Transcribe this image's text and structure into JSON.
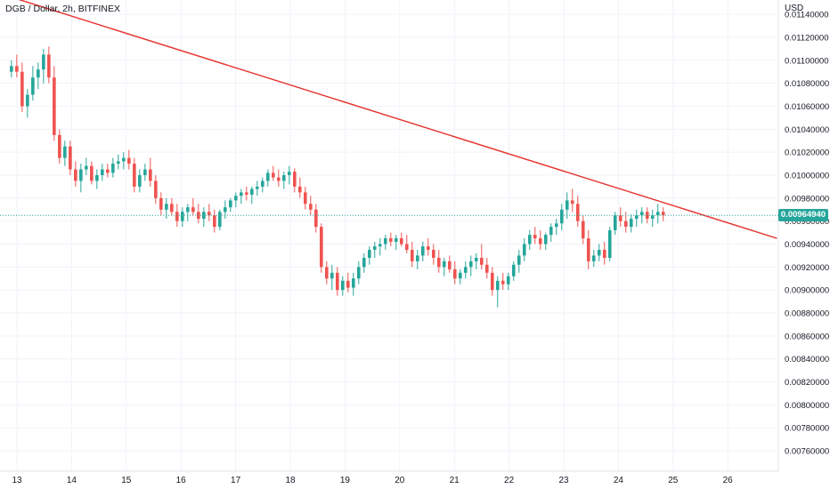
{
  "header": {
    "title": "DGB / Dollar, 2h, BITFINEX"
  },
  "axis": {
    "currency": "USD"
  },
  "colors": {
    "up": "#26a69a",
    "down": "#ef5350",
    "trend": "#e53935",
    "last": "#26a69a"
  },
  "chart_data": {
    "type": "candlestick",
    "title": "DGB / Dollar, 2h, BITFINEX",
    "ylabel": "USD",
    "ylim": [
      0.0075,
      0.0115
    ],
    "y_ticks": [
      "0.01140000",
      "0.01120000",
      "0.01100000",
      "0.01080000",
      "0.01060000",
      "0.01040000",
      "0.01020000",
      "0.01000000",
      "0.00980000",
      "0.00960000",
      "0.00940000",
      "0.00920000",
      "0.00900000",
      "0.00880000",
      "0.00860000",
      "0.00840000",
      "0.00820000",
      "0.00800000",
      "0.00780000",
      "0.00760000"
    ],
    "x_ticks": [
      "13",
      "14",
      "15",
      "16",
      "17",
      "18",
      "19",
      "20",
      "21",
      "22",
      "23",
      "24",
      "25",
      "26"
    ],
    "x_range": [
      12.9,
      26.9
    ],
    "last_price": "0.00964940",
    "grid": true,
    "trendline": {
      "x": [
        12.9,
        26.9
      ],
      "y": [
        0.01155,
        0.00945
      ]
    },
    "candles_ohlc": [
      [
        0.0109,
        0.011,
        0.01085,
        0.01095
      ],
      [
        0.01095,
        0.01105,
        0.01085,
        0.0109
      ],
      [
        0.0109,
        0.01098,
        0.01055,
        0.0106
      ],
      [
        0.0106,
        0.01075,
        0.0105,
        0.0107
      ],
      [
        0.0107,
        0.01095,
        0.01065,
        0.01085
      ],
      [
        0.01085,
        0.01098,
        0.01075,
        0.01092
      ],
      [
        0.01092,
        0.0111,
        0.0108,
        0.01105
      ],
      [
        0.01105,
        0.01112,
        0.0108,
        0.01085
      ],
      [
        0.01085,
        0.01095,
        0.0103,
        0.01035
      ],
      [
        0.01035,
        0.0104,
        0.0101,
        0.01015
      ],
      [
        0.01015,
        0.0103,
        0.01008,
        0.01025
      ],
      [
        0.01025,
        0.0103,
        0.01,
        0.01005
      ],
      [
        0.01005,
        0.01012,
        0.0099,
        0.00995
      ],
      [
        0.00995,
        0.0101,
        0.00985,
        0.01005
      ],
      [
        0.01005,
        0.01015,
        0.01,
        0.01008
      ],
      [
        0.01008,
        0.01012,
        0.00992,
        0.00995
      ],
      [
        0.00995,
        0.01005,
        0.00988,
        0.01
      ],
      [
        0.01,
        0.0101,
        0.00995,
        0.01005
      ],
      [
        0.01005,
        0.0101,
        0.00998,
        0.01002
      ],
      [
        0.01002,
        0.01015,
        0.00998,
        0.0101
      ],
      [
        0.0101,
        0.01018,
        0.01005,
        0.01012
      ],
      [
        0.01012,
        0.0102,
        0.01005,
        0.01015
      ],
      [
        0.01015,
        0.01022,
        0.01005,
        0.0101
      ],
      [
        0.0101,
        0.01015,
        0.00985,
        0.0099
      ],
      [
        0.0099,
        0.01005,
        0.00985,
        0.01
      ],
      [
        0.01,
        0.0101,
        0.00995,
        0.01005
      ],
      [
        0.01005,
        0.01015,
        0.0099,
        0.00995
      ],
      [
        0.00995,
        0.01,
        0.00975,
        0.0098
      ],
      [
        0.0098,
        0.00985,
        0.00965,
        0.0097
      ],
      [
        0.0097,
        0.0098,
        0.00962,
        0.00975
      ],
      [
        0.00975,
        0.0098,
        0.00965,
        0.00968
      ],
      [
        0.00968,
        0.00975,
        0.00955,
        0.0096
      ],
      [
        0.0096,
        0.00972,
        0.00955,
        0.00968
      ],
      [
        0.00968,
        0.00975,
        0.0096,
        0.00972
      ],
      [
        0.00972,
        0.0098,
        0.00965,
        0.00968
      ],
      [
        0.00968,
        0.00975,
        0.00958,
        0.00962
      ],
      [
        0.00962,
        0.00972,
        0.00955,
        0.00968
      ],
      [
        0.00968,
        0.00975,
        0.0096,
        0.00965
      ],
      [
        0.00965,
        0.0097,
        0.0095,
        0.00955
      ],
      [
        0.00955,
        0.0097,
        0.00952,
        0.00968
      ],
      [
        0.00968,
        0.00978,
        0.00962,
        0.00972
      ],
      [
        0.00972,
        0.0098,
        0.00968,
        0.00978
      ],
      [
        0.00978,
        0.00985,
        0.00972,
        0.00982
      ],
      [
        0.00982,
        0.00988,
        0.00975,
        0.00985
      ],
      [
        0.00985,
        0.0099,
        0.00978,
        0.00983
      ],
      [
        0.00983,
        0.0099,
        0.00975,
        0.00988
      ],
      [
        0.00988,
        0.00995,
        0.00982,
        0.0099
      ],
      [
        0.0099,
        0.00998,
        0.00985,
        0.00995
      ],
      [
        0.00995,
        0.01005,
        0.0099,
        0.01002
      ],
      [
        0.01002,
        0.01008,
        0.00995,
        0.00998
      ],
      [
        0.00998,
        0.01005,
        0.0099,
        0.00995
      ],
      [
        0.00995,
        0.01003,
        0.00988,
        0.01
      ],
      [
        0.01,
        0.01008,
        0.00992,
        0.01003
      ],
      [
        0.01003,
        0.01006,
        0.00985,
        0.0099
      ],
      [
        0.0099,
        0.00998,
        0.0098,
        0.00985
      ],
      [
        0.00985,
        0.0099,
        0.0097,
        0.00975
      ],
      [
        0.00975,
        0.00982,
        0.00965,
        0.0097
      ],
      [
        0.0097,
        0.00975,
        0.0095,
        0.00955
      ],
      [
        0.00955,
        0.00958,
        0.00915,
        0.0092
      ],
      [
        0.0092,
        0.00925,
        0.00905,
        0.0091
      ],
      [
        0.0091,
        0.00922,
        0.009,
        0.00915
      ],
      [
        0.00915,
        0.0092,
        0.00895,
        0.009
      ],
      [
        0.009,
        0.00912,
        0.00895,
        0.00908
      ],
      [
        0.00908,
        0.00915,
        0.00898,
        0.00902
      ],
      [
        0.00902,
        0.00915,
        0.00895,
        0.0091
      ],
      [
        0.0091,
        0.00925,
        0.00905,
        0.0092
      ],
      [
        0.0092,
        0.00932,
        0.00915,
        0.00928
      ],
      [
        0.00928,
        0.00938,
        0.00922,
        0.00935
      ],
      [
        0.00935,
        0.00942,
        0.00928,
        0.00938
      ],
      [
        0.00938,
        0.00945,
        0.0093,
        0.0094
      ],
      [
        0.0094,
        0.00948,
        0.00935,
        0.00945
      ],
      [
        0.00945,
        0.0095,
        0.00938,
        0.00942
      ],
      [
        0.00942,
        0.00948,
        0.00935,
        0.00945
      ],
      [
        0.00945,
        0.0095,
        0.00938,
        0.0094
      ],
      [
        0.0094,
        0.00948,
        0.00932,
        0.00935
      ],
      [
        0.00935,
        0.00942,
        0.0092,
        0.00925
      ],
      [
        0.00925,
        0.00935,
        0.00918,
        0.0093
      ],
      [
        0.0093,
        0.00942,
        0.00925,
        0.00938
      ],
      [
        0.00938,
        0.00945,
        0.0093,
        0.00935
      ],
      [
        0.00935,
        0.0094,
        0.00922,
        0.00928
      ],
      [
        0.00928,
        0.00935,
        0.00915,
        0.0092
      ],
      [
        0.0092,
        0.00928,
        0.00912,
        0.00925
      ],
      [
        0.00925,
        0.0093,
        0.00915,
        0.00918
      ],
      [
        0.00918,
        0.00925,
        0.00905,
        0.0091
      ],
      [
        0.0091,
        0.00918,
        0.00905,
        0.00915
      ],
      [
        0.00915,
        0.00925,
        0.0091,
        0.0092
      ],
      [
        0.0092,
        0.0093,
        0.00912,
        0.00925
      ],
      [
        0.00925,
        0.00932,
        0.00918,
        0.00928
      ],
      [
        0.00928,
        0.0094,
        0.00918,
        0.00922
      ],
      [
        0.00922,
        0.00928,
        0.0091,
        0.00915
      ],
      [
        0.00915,
        0.0092,
        0.00895,
        0.009
      ],
      [
        0.009,
        0.00912,
        0.00885,
        0.00908
      ],
      [
        0.00908,
        0.00915,
        0.009,
        0.00905
      ],
      [
        0.00905,
        0.00915,
        0.009,
        0.00912
      ],
      [
        0.00912,
        0.00925,
        0.00908,
        0.00922
      ],
      [
        0.00922,
        0.00935,
        0.00915,
        0.0093
      ],
      [
        0.0093,
        0.00945,
        0.00925,
        0.0094
      ],
      [
        0.0094,
        0.00952,
        0.00935,
        0.00948
      ],
      [
        0.00948,
        0.00955,
        0.0094,
        0.00945
      ],
      [
        0.00945,
        0.00952,
        0.00935,
        0.0094
      ],
      [
        0.0094,
        0.0095,
        0.00935,
        0.00948
      ],
      [
        0.00948,
        0.00958,
        0.00942,
        0.00955
      ],
      [
        0.00955,
        0.00962,
        0.00948,
        0.00958
      ],
      [
        0.00958,
        0.00975,
        0.00952,
        0.0097
      ],
      [
        0.0097,
        0.00985,
        0.00962,
        0.00978
      ],
      [
        0.00978,
        0.00988,
        0.00968,
        0.00975
      ],
      [
        0.00975,
        0.00982,
        0.00955,
        0.0096
      ],
      [
        0.0096,
        0.00965,
        0.0094,
        0.00945
      ],
      [
        0.00945,
        0.00952,
        0.00918,
        0.00925
      ],
      [
        0.00925,
        0.00935,
        0.0092,
        0.0093
      ],
      [
        0.0093,
        0.0094,
        0.00925,
        0.00935
      ],
      [
        0.00935,
        0.00942,
        0.00922,
        0.00928
      ],
      [
        0.00928,
        0.00955,
        0.00925,
        0.00952
      ],
      [
        0.00952,
        0.00968,
        0.00948,
        0.00965
      ],
      [
        0.00965,
        0.00972,
        0.00955,
        0.0096
      ],
      [
        0.0096,
        0.00968,
        0.0095,
        0.00955
      ],
      [
        0.00955,
        0.00966,
        0.0095,
        0.00962
      ],
      [
        0.00962,
        0.0097,
        0.00955,
        0.00965
      ],
      [
        0.00965,
        0.00972,
        0.00958,
        0.00968
      ],
      [
        0.00968,
        0.00972,
        0.00958,
        0.00962
      ],
      [
        0.00962,
        0.0097,
        0.00955,
        0.00965
      ],
      [
        0.00965,
        0.00975,
        0.00958,
        0.00968
      ],
      [
        0.00968,
        0.00972,
        0.0096,
        0.00965
      ]
    ]
  }
}
